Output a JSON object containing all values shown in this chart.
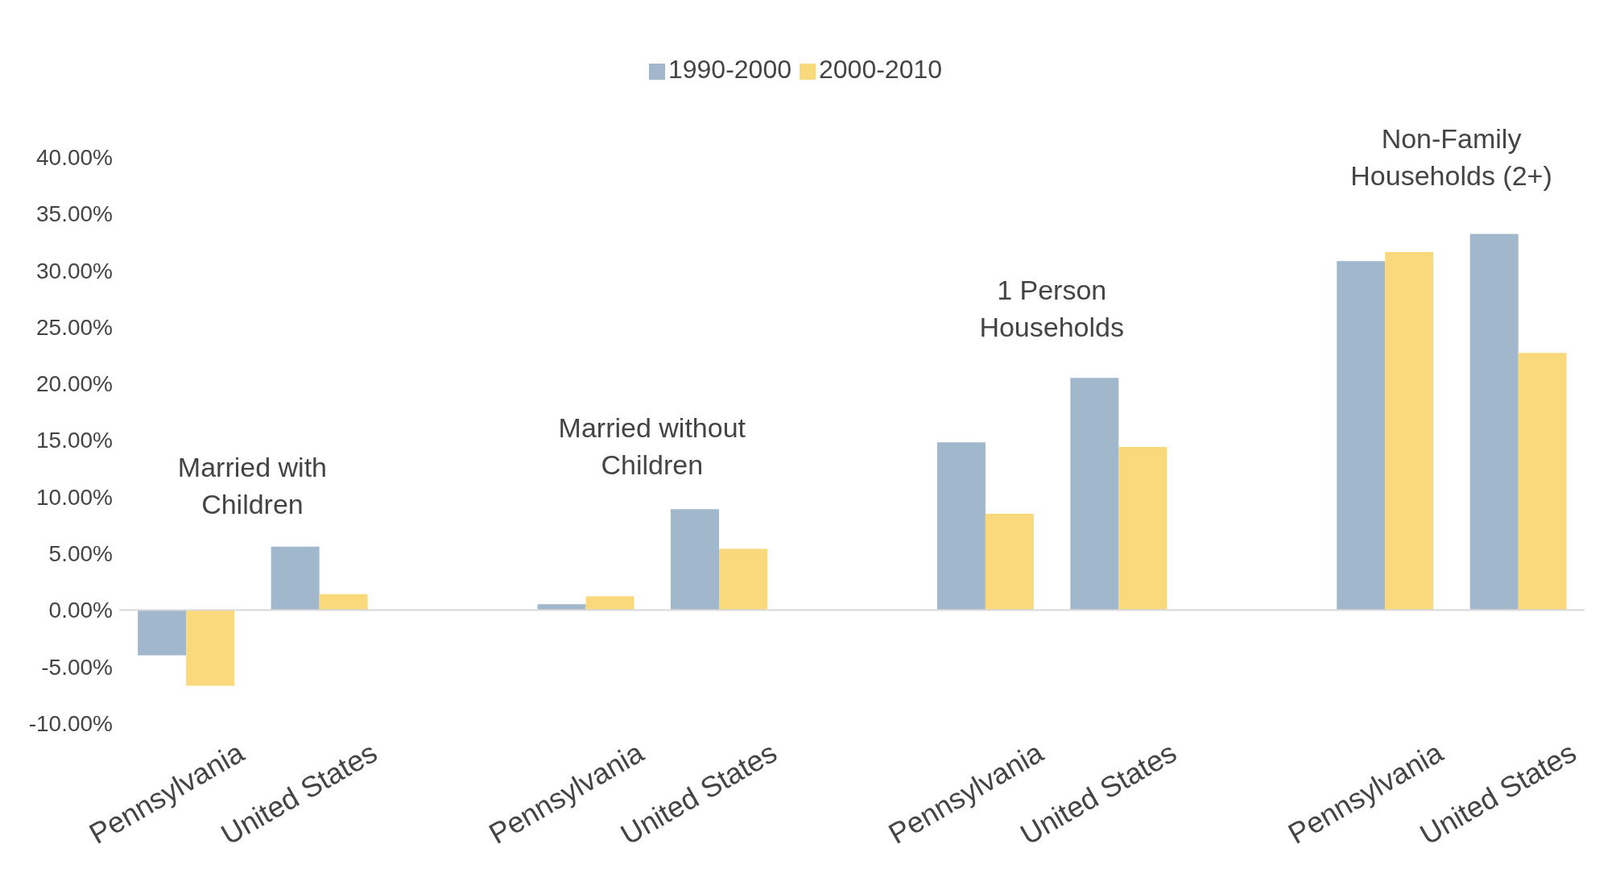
{
  "chart_data": {
    "type": "bar",
    "categories": [
      "Pennsylvania",
      "United States",
      null,
      "Pennsylvania",
      "United States",
      null,
      "Pennsylvania",
      "United States",
      null,
      "Pennsylvania",
      "United States"
    ],
    "series": [
      {
        "name": "1990-2000",
        "color": "#a0b7cc",
        "values": [
          -4.0,
          5.6,
          null,
          0.5,
          8.9,
          null,
          14.8,
          20.5,
          null,
          30.8,
          33.2
        ]
      },
      {
        "name": "2000-2010",
        "color": "#f9d97b",
        "values": [
          -6.7,
          1.4,
          null,
          1.2,
          5.4,
          null,
          8.5,
          14.4,
          null,
          31.6,
          22.7
        ]
      }
    ],
    "ylim": [
      -10,
      40
    ],
    "yticks": [
      {
        "value": -10,
        "label": "-10.00%"
      },
      {
        "value": -5,
        "label": "-5.00%"
      },
      {
        "value": 0,
        "label": "0.00%"
      },
      {
        "value": 5,
        "label": "5.00%"
      },
      {
        "value": 10,
        "label": "10.00%"
      },
      {
        "value": 15,
        "label": "15.00%"
      },
      {
        "value": 20,
        "label": "20.00%"
      },
      {
        "value": 25,
        "label": "25.00%"
      },
      {
        "value": 30,
        "label": "30.00%"
      },
      {
        "value": 35,
        "label": "35.00%"
      },
      {
        "value": 40,
        "label": "40.00%"
      }
    ],
    "annotations": [
      "Married with Children",
      "Married without Children",
      "1 Person Households",
      "Non-Family Households (2+)"
    ],
    "legend": "top"
  }
}
